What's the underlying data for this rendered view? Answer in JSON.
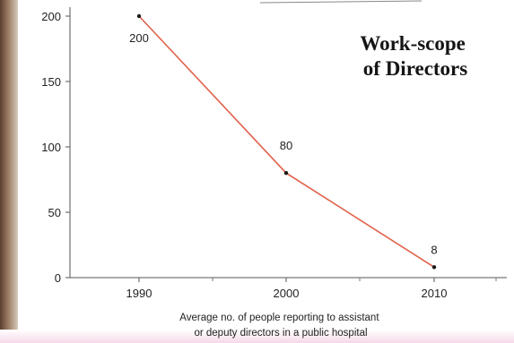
{
  "chart_data": {
    "type": "line",
    "title": "Work-scope\nof Directors",
    "xlabel": "Average no. of people reporting to assistant\nor deputy directors in a public hospital",
    "ylabel": "",
    "x": [
      "1990",
      "2000",
      "2010"
    ],
    "series": [
      {
        "values": [
          200,
          80,
          8
        ]
      }
    ],
    "data_labels": [
      "200",
      "80",
      "8"
    ],
    "yticks": [
      0,
      50,
      100,
      150,
      200
    ],
    "ylim": [
      0,
      200
    ],
    "grid": false,
    "line_color": "#e0624a",
    "marker_color": "#1a1a1a"
  }
}
